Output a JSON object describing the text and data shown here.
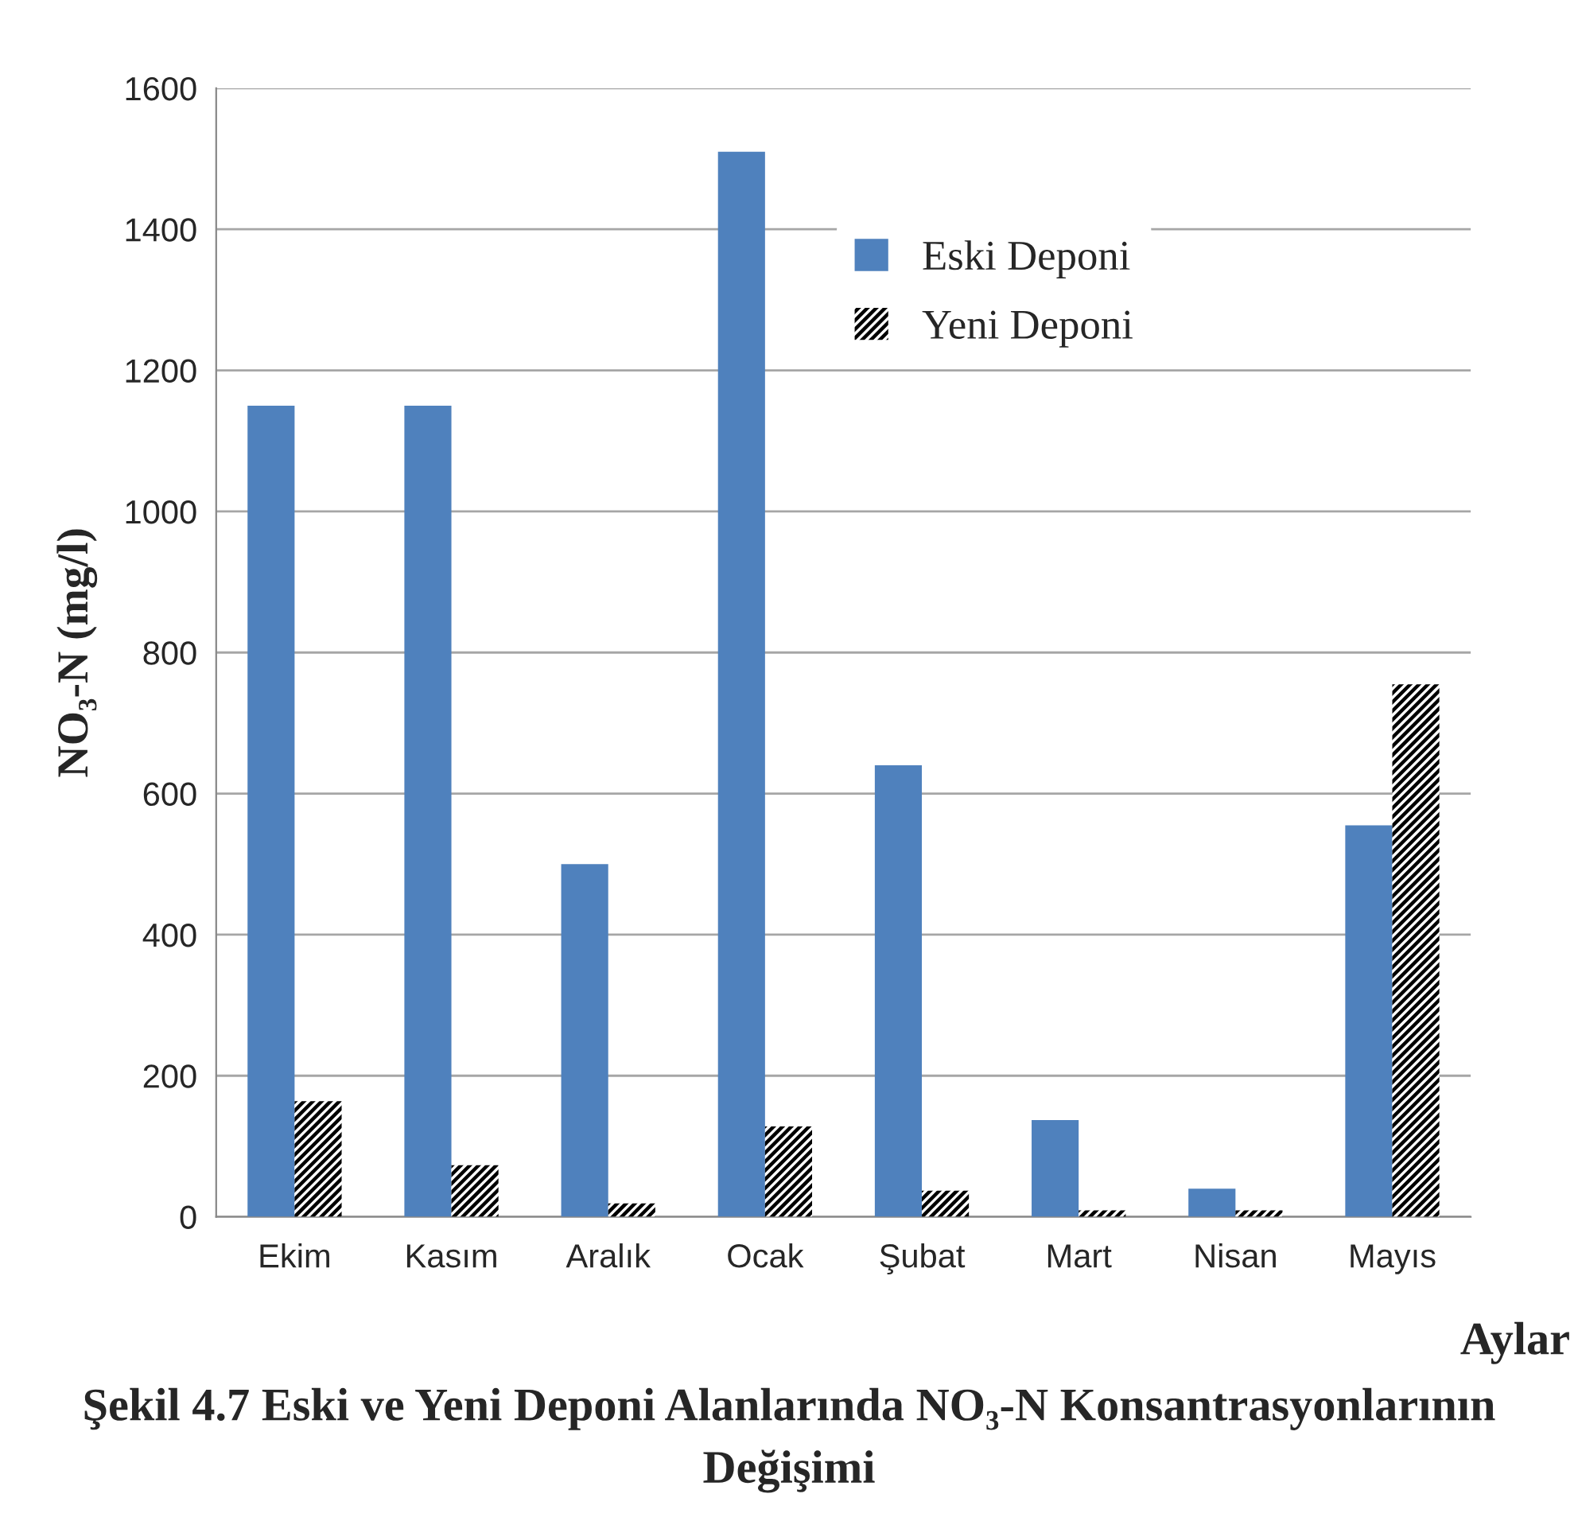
{
  "chart_data": {
    "type": "bar",
    "title": "Şekil 4.7 Eski ve Yeni Deponi Alanlarında NO₃-N Konsantrasyonlarının Değişimi",
    "xlabel": "Aylar",
    "ylabel": "NO₃-N (mg/l)",
    "categories": [
      "Ekim",
      "Kasım",
      "Aralık",
      "Ocak",
      "Şubat",
      "Mart",
      "Nisan",
      "Mayıs"
    ],
    "series": [
      {
        "name": "Eski Deponi",
        "color": "#4f81bd",
        "values": [
          1150,
          1150,
          500,
          1510,
          640,
          137,
          40,
          555
        ]
      },
      {
        "name": "Yeni Deponi",
        "color": "#000000",
        "values": [
          164,
          73,
          19,
          128,
          37,
          9,
          9,
          755
        ]
      }
    ],
    "ylim": [
      0,
      1600
    ],
    "yticks": [
      0,
      200,
      400,
      600,
      800,
      1000,
      1200,
      1400,
      1600
    ],
    "grid": "y",
    "legend": "top"
  }
}
